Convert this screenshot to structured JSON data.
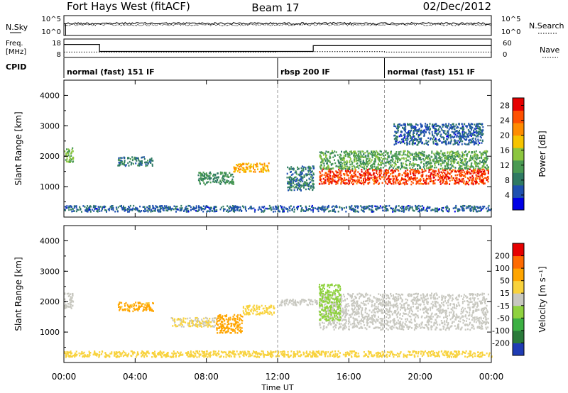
{
  "header": {
    "station": "Fort Hays West (fitACF)",
    "beam": "Beam 17",
    "date": "02/Dec/2012"
  },
  "noise_panel": {
    "left_label": "N.Sky",
    "right_label": "N.Search",
    "left_ticks": [
      "10^5",
      "10^0"
    ],
    "right_ticks": [
      "10^5",
      "10^0"
    ]
  },
  "freq_panel": {
    "left_label_top": "Freq.",
    "left_label_bottom": "[MHz]",
    "right_label": "Nave",
    "left_ticks": [
      "18",
      "8"
    ],
    "right_ticks": [
      "60",
      "0"
    ],
    "cpid_label": "CPID",
    "cpid_segments": [
      {
        "label": "normal (fast) 151 IF",
        "start_hour": 0,
        "end_hour": 12
      },
      {
        "label": "rbsp 200 IF",
        "start_hour": 12,
        "end_hour": 18
      },
      {
        "label": "normal (fast) 151 IF",
        "start_hour": 18,
        "end_hour": 24
      }
    ]
  },
  "chart_data": [
    {
      "type": "heatmap",
      "title": "",
      "xlabel": "Time UT",
      "ylabel": "Slant Range [km]",
      "xlim": [
        0,
        24
      ],
      "ylim": [
        0,
        4500
      ],
      "x_ticks": [
        "00:00",
        "04:00",
        "08:00",
        "12:00",
        "16:00",
        "20:00",
        "00:00"
      ],
      "y_ticks": [
        "1000",
        "2000",
        "3000",
        "4000"
      ],
      "colorbar": {
        "label": "Power [dB]",
        "ticks": [
          "4",
          "8",
          "12",
          "16",
          "20",
          "24",
          "28"
        ],
        "range": [
          0,
          30
        ],
        "colors": [
          "#0000e6",
          "#1f50b0",
          "#2f7a63",
          "#4a9a53",
          "#8cc63f",
          "#f6c400",
          "#ff8c00",
          "#ff5000",
          "#e60000"
        ]
      },
      "echo_regions": [
        {
          "t_start": 0.0,
          "t_end": 0.5,
          "range_low": 1800,
          "range_high": 2300,
          "level": 14
        },
        {
          "t_start": 3.0,
          "t_end": 5.0,
          "range_low": 1700,
          "range_high": 2000,
          "level": 8
        },
        {
          "t_start": 7.5,
          "t_end": 9.5,
          "range_low": 1100,
          "range_high": 1500,
          "level": 10
        },
        {
          "t_start": 9.5,
          "t_end": 11.5,
          "range_low": 1500,
          "range_high": 1800,
          "level": 20
        },
        {
          "t_start": 12.5,
          "t_end": 14.0,
          "range_low": 900,
          "range_high": 1700,
          "level": 8
        },
        {
          "t_start": 14.3,
          "t_end": 23.8,
          "range_low": 1100,
          "range_high": 1600,
          "level": 26
        },
        {
          "t_start": 14.3,
          "t_end": 23.8,
          "range_low": 1600,
          "range_high": 2200,
          "level": 12
        },
        {
          "t_start": 18.5,
          "t_end": 23.5,
          "range_low": 2400,
          "range_high": 3100,
          "level": 6
        },
        {
          "t_start": 0.0,
          "t_end": 24.0,
          "range_low": 200,
          "range_high": 400,
          "level": 6
        }
      ],
      "event_lines_hour": [
        12,
        18
      ]
    },
    {
      "type": "heatmap",
      "title": "",
      "xlabel": "Time UT",
      "ylabel": "Slant Range [km]",
      "xlim": [
        0,
        24
      ],
      "ylim": [
        0,
        4500
      ],
      "x_ticks": [
        "00:00",
        "04:00",
        "08:00",
        "12:00",
        "16:00",
        "20:00",
        "00:00"
      ],
      "y_ticks": [
        "1000",
        "2000",
        "3000",
        "4000"
      ],
      "colorbar": {
        "label": "Velocity [m s⁻¹]",
        "ticks": [
          "200",
          "100",
          "50",
          "15",
          "-15",
          "-50",
          "-100",
          "-200"
        ],
        "range": [
          -250,
          250
        ],
        "colors": [
          "#1f3cb4",
          "#2a7a3a",
          "#3cb043",
          "#8fd23f",
          "#c8c8c0",
          "#f8d23c",
          "#ffa500",
          "#ff6a00",
          "#e60000"
        ]
      },
      "echo_regions": [
        {
          "t_start": 0.0,
          "t_end": 0.5,
          "range_low": 1800,
          "range_high": 2300,
          "velocity": 0
        },
        {
          "t_start": 3.0,
          "t_end": 5.0,
          "range_low": 1700,
          "range_high": 2000,
          "velocity": -100
        },
        {
          "t_start": 6.0,
          "t_end": 8.5,
          "range_low": 1200,
          "range_high": 1500,
          "velocity": -30
        },
        {
          "t_start": 8.5,
          "t_end": 10.0,
          "range_low": 1000,
          "range_high": 1600,
          "velocity": -110
        },
        {
          "t_start": 10.0,
          "t_end": 11.8,
          "range_low": 1600,
          "range_high": 1900,
          "velocity": -50
        },
        {
          "t_start": 12.0,
          "t_end": 14.2,
          "range_low": 1900,
          "range_high": 2100,
          "velocity": 0
        },
        {
          "t_start": 14.3,
          "t_end": 23.8,
          "range_low": 1100,
          "range_high": 2300,
          "velocity": 0
        },
        {
          "t_start": 14.3,
          "t_end": 15.5,
          "range_low": 1400,
          "range_high": 2600,
          "velocity": 60
        },
        {
          "t_start": 0.0,
          "t_end": 24.0,
          "range_low": 200,
          "range_high": 400,
          "velocity": -60
        }
      ],
      "event_lines_hour": [
        12,
        18
      ]
    }
  ]
}
